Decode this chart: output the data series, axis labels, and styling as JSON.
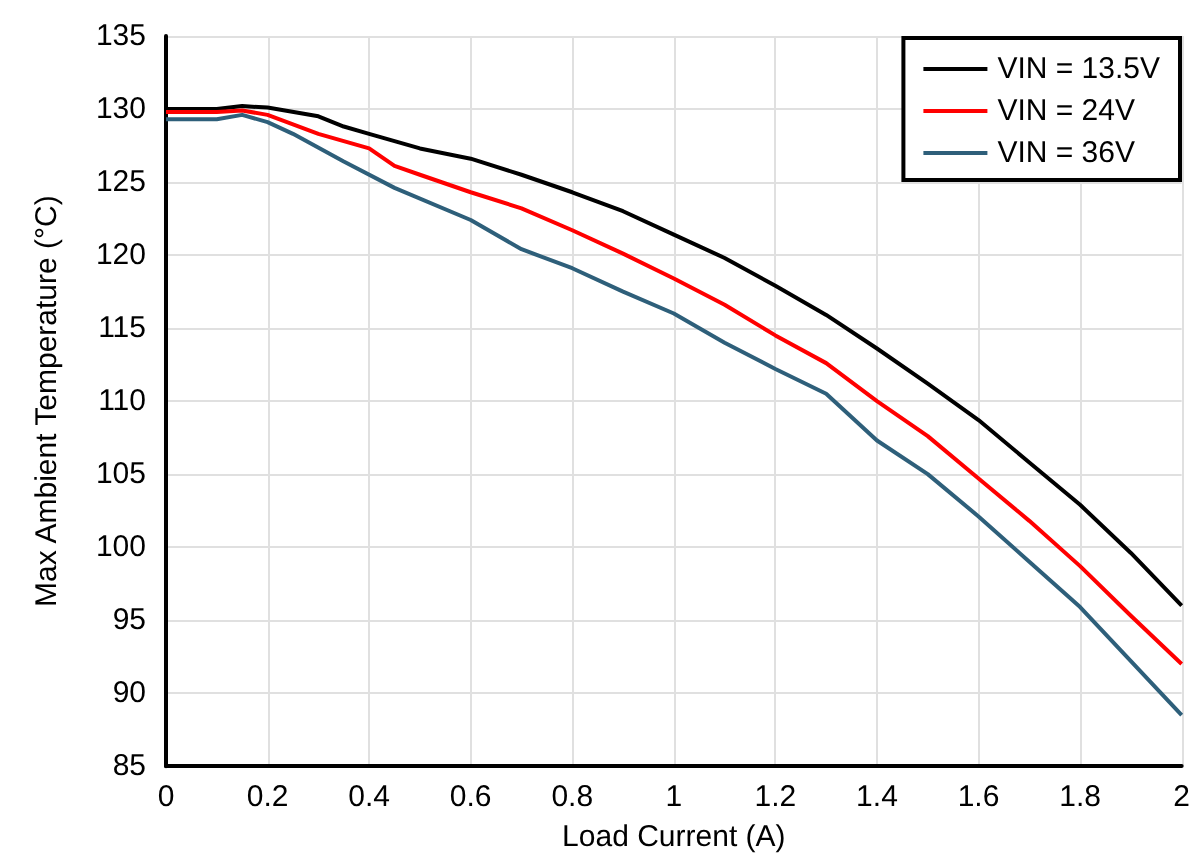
{
  "chart_data": {
    "type": "line",
    "xlabel": "Load Current (A)",
    "ylabel": "Max Ambient Temperature (°C)",
    "xlim": [
      0,
      2
    ],
    "xticks": [
      0,
      0.2,
      0.4,
      0.6,
      0.8,
      1,
      1.2,
      1.4,
      1.6,
      1.8,
      2
    ],
    "ylim": [
      85,
      135
    ],
    "yticks": [
      85,
      90,
      95,
      100,
      105,
      110,
      115,
      120,
      125,
      130,
      135
    ],
    "grid": true,
    "legend": "top right",
    "marker": "none",
    "line_style": "solid",
    "series": [
      {
        "name": "VIN = 13.5V",
        "color": "#000000",
        "x": [
          0,
          0.1,
          0.15,
          0.2,
          0.3,
          0.35,
          0.4,
          0.5,
          0.6,
          0.7,
          0.8,
          0.9,
          1,
          1.1,
          1.2,
          1.3,
          1.4,
          1.5,
          1.6,
          1.7,
          1.8,
          1.9,
          2
        ],
        "values": [
          130,
          130,
          130.2,
          130.1,
          129.5,
          128.8,
          128.3,
          127.3,
          126.6,
          125.5,
          124.3,
          123,
          121.4,
          119.8,
          117.9,
          115.9,
          113.6,
          111.2,
          108.7,
          105.8,
          102.9,
          99.6,
          96
        ]
      },
      {
        "name": "VIN = 24V",
        "color": "#ff0000",
        "x": [
          0,
          0.1,
          0.15,
          0.2,
          0.3,
          0.4,
          0.45,
          0.5,
          0.6,
          0.7,
          0.8,
          0.9,
          1,
          1.1,
          1.2,
          1.3,
          1.4,
          1.5,
          1.6,
          1.7,
          1.8,
          1.9,
          2
        ],
        "values": [
          129.8,
          129.8,
          129.9,
          129.6,
          128.3,
          127.3,
          126.1,
          125.5,
          124.3,
          123.2,
          121.7,
          120.1,
          118.4,
          116.6,
          114.5,
          112.6,
          110,
          107.6,
          104.7,
          101.8,
          98.7,
          95.3,
          92
        ]
      },
      {
        "name": "VIN = 36V",
        "color": "#2e5f7a",
        "x": [
          0,
          0.1,
          0.15,
          0.2,
          0.25,
          0.35,
          0.45,
          0.6,
          0.7,
          0.8,
          0.9,
          1,
          1.1,
          1.2,
          1.3,
          1.4,
          1.5,
          1.6,
          1.7,
          1.8,
          1.9,
          2
        ],
        "values": [
          129.3,
          129.3,
          129.6,
          129.1,
          128.3,
          126.4,
          124.6,
          122.4,
          120.4,
          119.1,
          117.5,
          116,
          114,
          112.2,
          110.5,
          107.3,
          105,
          102.1,
          99,
          95.9,
          92.2,
          88.5
        ]
      }
    ]
  }
}
